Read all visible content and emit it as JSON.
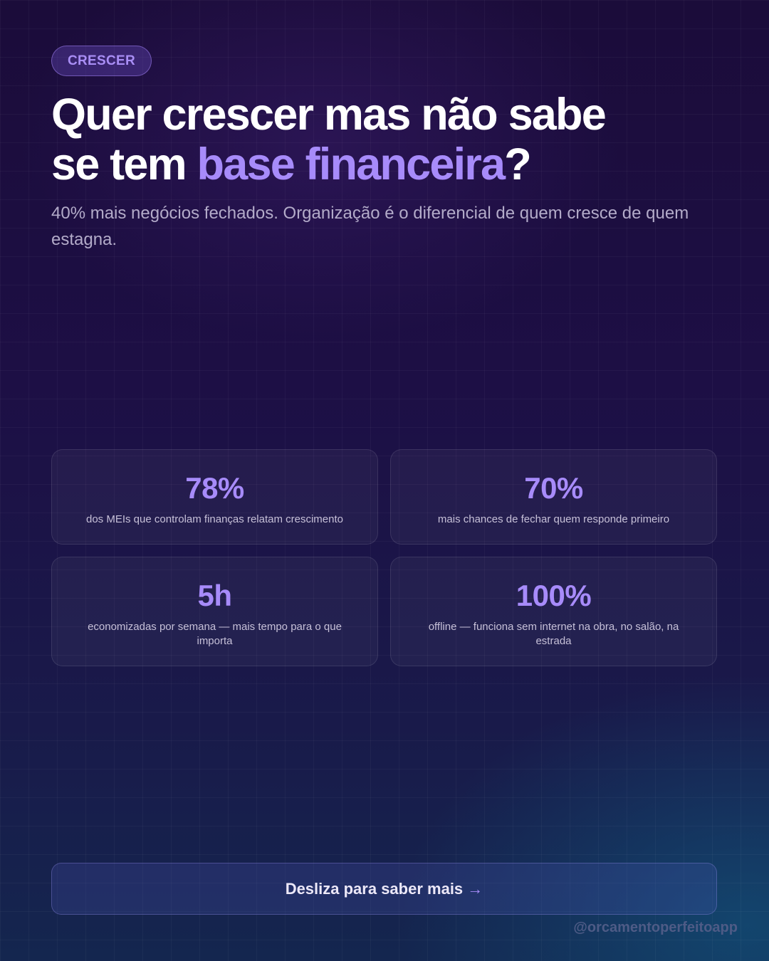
{
  "badge": "CRESCER",
  "title": {
    "line1": "Quer crescer mas não sabe",
    "line2_prefix": "se tem ",
    "highlight": "base financeira",
    "suffix": "?"
  },
  "subtitle": "40% mais negócios fechados. Organização é o diferencial de quem cresce de quem estagna.",
  "stats": [
    {
      "value": "78%",
      "description": "dos MEIs que controlam finanças relatam crescimento"
    },
    {
      "value": "70%",
      "description": "mais chances de fechar quem responde primeiro"
    },
    {
      "value": "5h",
      "description": "economizadas por semana — mais tempo para o que importa"
    },
    {
      "value": "100%",
      "description": "offline — funciona sem internet na obra, no salão, na estrada"
    }
  ],
  "cta": {
    "label": "Desliza para saber mais",
    "arrow": "→"
  },
  "handle": "@orcamentoperfeitoapp"
}
